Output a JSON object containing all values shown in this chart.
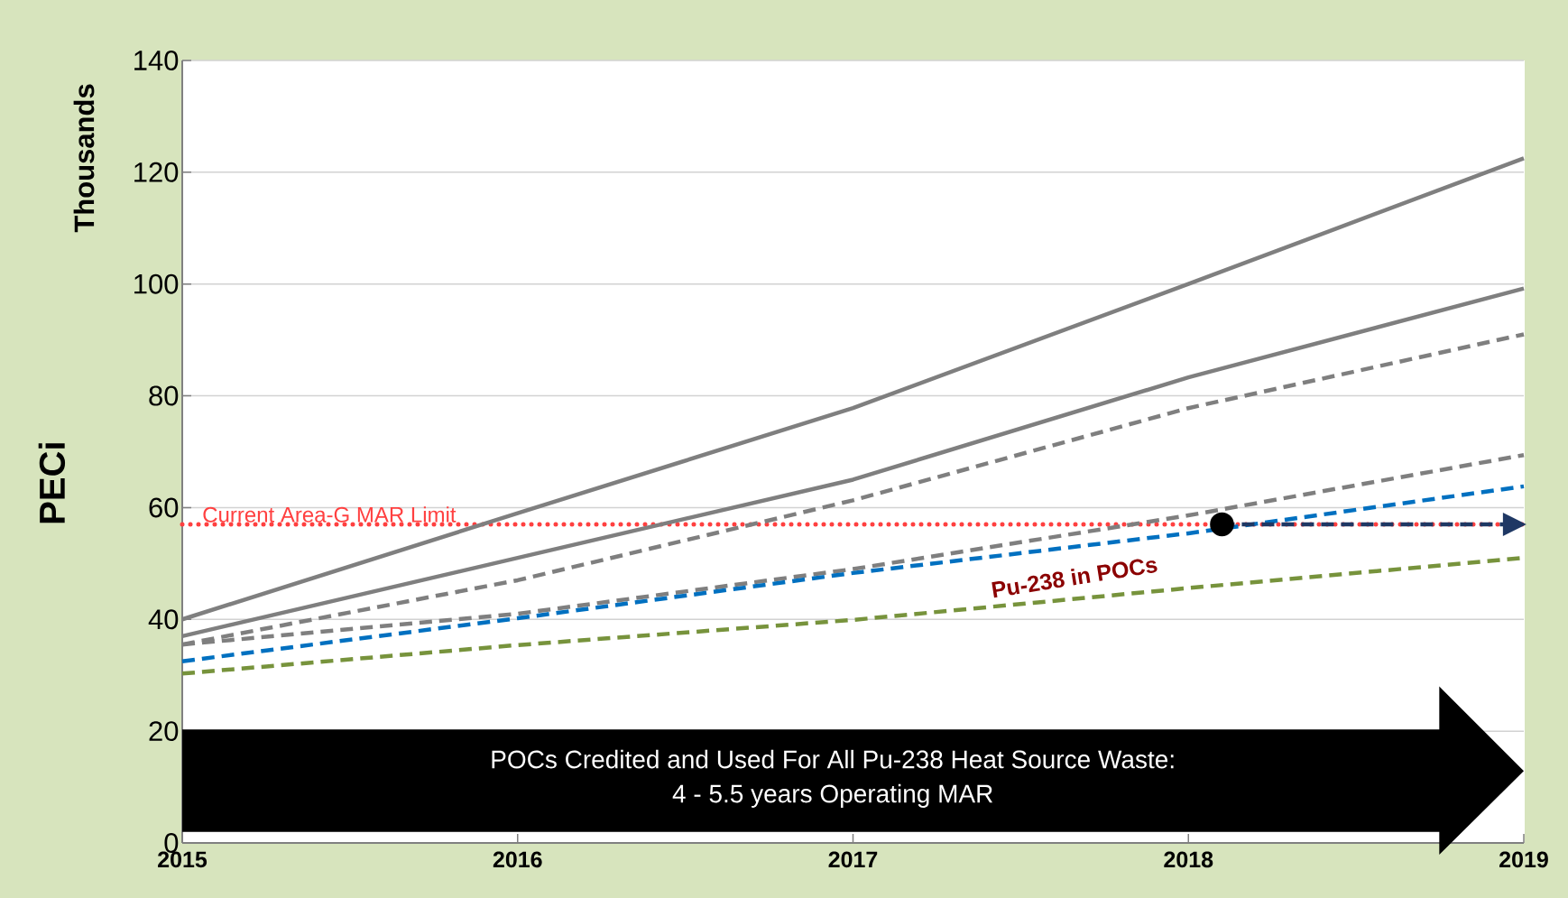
{
  "chart_data": {
    "type": "line",
    "ylabel": "PECi",
    "x": [
      2015,
      2016,
      2017,
      2018,
      2019
    ],
    "series": [
      {
        "color": "#7f7f7f",
        "line_style": "solid",
        "values": [
          40,
          59,
          77.8,
          100,
          122.5
        ]
      },
      {
        "color": "#7f7f7f",
        "line_style": "solid",
        "values": [
          37,
          51,
          65,
          83.3,
          99.2
        ]
      },
      {
        "color": "#7f7f7f",
        "line_style": "dashed",
        "values": [
          35.5,
          47,
          61.3,
          77.8,
          91
        ]
      },
      {
        "color": "#7f7f7f",
        "line_style": "dashed",
        "values": [
          35.5,
          41,
          49,
          58.6,
          69.4
        ]
      },
      {
        "color": "#0070c0",
        "line_style": "dashed",
        "values": [
          32.5,
          40.2,
          48.3,
          55.4,
          63.8
        ]
      },
      {
        "color": "#77933c",
        "line_style": "dashed",
        "values": [
          30.3,
          35.4,
          39.9,
          45.6,
          51
        ]
      },
      {
        "color": "#1f3864",
        "line_style": "dashed",
        "marker": "circle",
        "x": [
          2018.1,
          2018.97
        ],
        "values": [
          57,
          57
        ]
      }
    ],
    "ref_lines": [
      {
        "axis": "y",
        "value": 57,
        "label": "Current Area-G MAR Limit",
        "color": "#ff4040",
        "line_style": "dotted"
      }
    ],
    "annotations": [
      "Thousands",
      "Pu-238 in POCs",
      "POCs Credited and Used For All Pu-238 Heat Source Waste:",
      "4 - 5.5 years Operating MAR"
    ],
    "xlim": [
      2015,
      2019
    ],
    "ylim": [
      0,
      140
    ],
    "xticks": [
      2015,
      2016,
      2017,
      2018,
      2019
    ],
    "yticks": [
      0,
      20,
      40,
      60,
      80,
      100,
      120,
      140
    ],
    "grid": "y"
  }
}
